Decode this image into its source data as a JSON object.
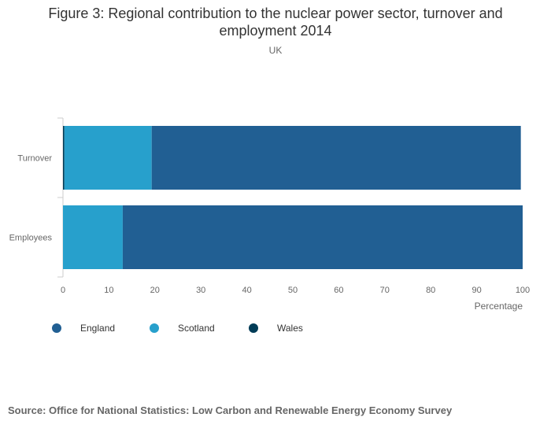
{
  "title_line1": "Figure 3: Regional contribution to the nuclear power sector, turnover and",
  "title_line2": "employment 2014",
  "subtitle": "UK",
  "source": "Source: Office for National Statistics: Low Carbon and Renewable Energy Economy Survey",
  "colors": {
    "England": "#215f93",
    "Scotland": "#27a0cc",
    "Wales": "#003c57"
  },
  "chart_data": {
    "type": "bar",
    "orientation": "horizontal",
    "stacked": true,
    "categories": [
      "Turnover",
      "Employees"
    ],
    "series": [
      {
        "name": "Wales",
        "values": [
          0.3,
          0
        ]
      },
      {
        "name": "Scotland",
        "values": [
          19,
          13
        ]
      },
      {
        "name": "England",
        "values": [
          80.3,
          87
        ]
      }
    ],
    "legend_order": [
      "England",
      "Scotland",
      "Wales"
    ],
    "xlabel": "Percentage",
    "ylabel": "",
    "xlim": [
      0,
      100
    ],
    "xticks": [
      0,
      10,
      20,
      30,
      40,
      50,
      60,
      70,
      80,
      90,
      100
    ],
    "grid": false,
    "legend_position": "bottom-left"
  }
}
